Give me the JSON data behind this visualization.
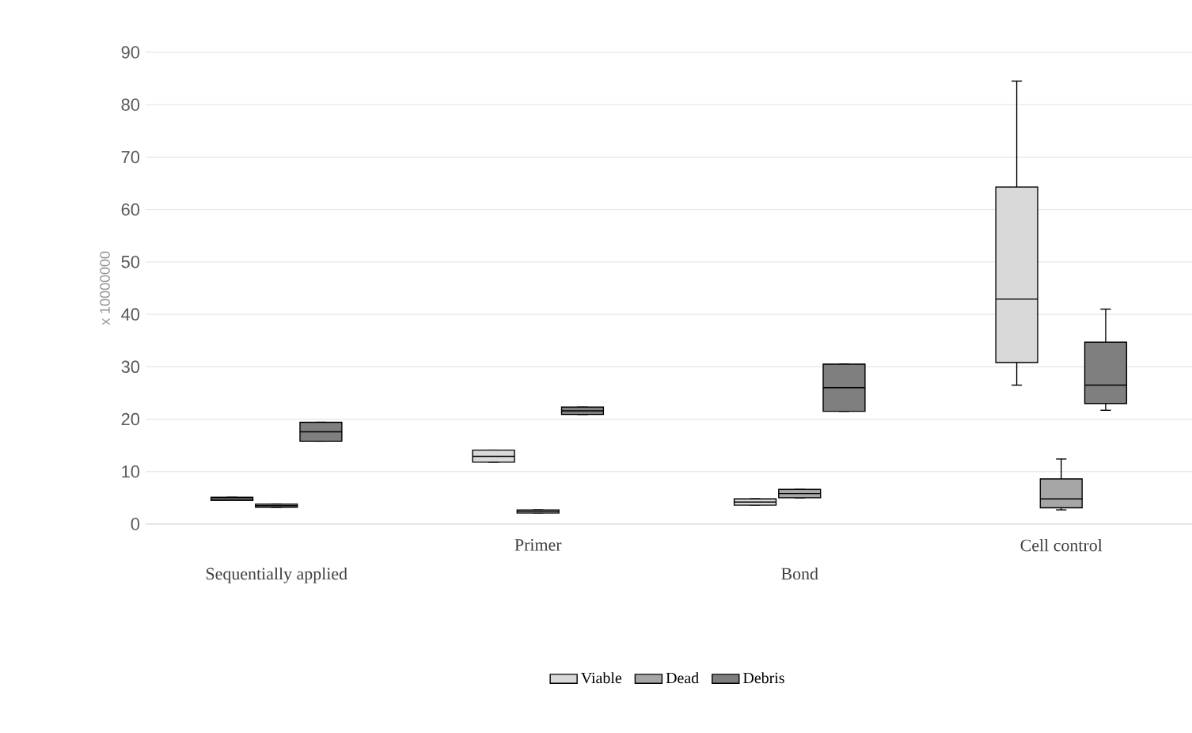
{
  "chart_data": {
    "type": "box",
    "ylabel": "x 10000000",
    "categories": [
      "Sequentially applied",
      "Primer",
      "Bond",
      "Cell control"
    ],
    "ylim": [
      0,
      90
    ],
    "yticks": [
      0,
      10,
      20,
      30,
      40,
      50,
      60,
      70,
      80,
      90
    ],
    "grid": "y",
    "legend": "bottom",
    "series": [
      {
        "name": "Viable",
        "color": "#d9d9d9",
        "boxes": [
          {
            "low": 4.5,
            "q1": 4.5,
            "median": 4.8,
            "q3": 5.1,
            "high": 5.1
          },
          {
            "low": 11.8,
            "q1": 11.8,
            "median": 12.9,
            "q3": 14.1,
            "high": 14.1
          },
          {
            "low": 3.6,
            "q1": 3.6,
            "median": 4.2,
            "q3": 4.8,
            "high": 4.8
          },
          {
            "low": 26.5,
            "q1": 30.8,
            "median": 42.9,
            "q3": 64.3,
            "high": 84.5
          }
        ]
      },
      {
        "name": "Dead",
        "color": "#a6a6a6",
        "boxes": [
          {
            "low": 3.2,
            "q1": 3.2,
            "median": 3.5,
            "q3": 3.8,
            "high": 3.8
          },
          {
            "low": 2.1,
            "q1": 2.1,
            "median": 2.4,
            "q3": 2.7,
            "high": 2.7
          },
          {
            "low": 5.0,
            "q1": 5.0,
            "median": 5.8,
            "q3": 6.6,
            "high": 6.6
          },
          {
            "low": 2.7,
            "q1": 3.1,
            "median": 4.8,
            "q3": 8.6,
            "high": 12.4
          }
        ]
      },
      {
        "name": "Debris",
        "color": "#7f7f7f",
        "boxes": [
          {
            "low": 15.8,
            "q1": 15.8,
            "median": 17.6,
            "q3": 19.4,
            "high": 19.4
          },
          {
            "low": 20.9,
            "q1": 20.9,
            "median": 21.6,
            "q3": 22.3,
            "high": 22.3
          },
          {
            "low": 21.5,
            "q1": 21.5,
            "median": 26.0,
            "q3": 30.5,
            "high": 30.5
          },
          {
            "low": 21.7,
            "q1": 23.0,
            "median": 26.5,
            "q3": 34.7,
            "high": 41.0
          }
        ]
      }
    ]
  }
}
